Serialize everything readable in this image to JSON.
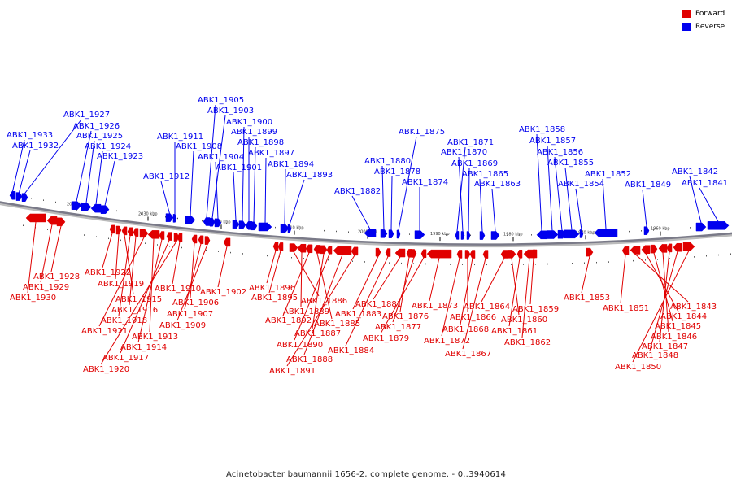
{
  "legend": {
    "forward_label": "Forward",
    "reverse_label": "Reverse",
    "forward_color": "#e00000",
    "reverse_color": "#0000ee"
  },
  "caption": "Acinetobacter baumannii 1656-2, complete genome. - 0..3940614",
  "scale_labels": [
    "2040 kbp",
    "2030 kbp",
    "2020 kbp",
    "2010 kbp",
    "2000 kbp",
    "1990 kbp",
    "1980 kbp",
    "1970 kbp",
    "1960 kbp"
  ],
  "reverse_genes": [
    "ABK1_1933",
    "ABK1_1932",
    "ABK1_1927",
    "ABK1_1926",
    "ABK1_1925",
    "ABK1_1924",
    "ABK1_1923",
    "ABK1_1912",
    "ABK1_1911",
    "ABK1_1908",
    "ABK1_1905",
    "ABK1_1903",
    "ABK1_1904",
    "ABK1_1901",
    "ABK1_1900",
    "ABK1_1899",
    "ABK1_1898",
    "ABK1_1897",
    "ABK1_1894",
    "ABK1_1893",
    "ABK1_1882",
    "ABK1_1880",
    "ABK1_1878",
    "ABK1_1875",
    "ABK1_1874",
    "ABK1_1871",
    "ABK1_1870",
    "ABK1_1869",
    "ABK1_1865",
    "ABK1_1863",
    "ABK1_1858",
    "ABK1_1857",
    "ABK1_1856",
    "ABK1_1855",
    "ABK1_1854",
    "ABK1_1852",
    "ABK1_1849",
    "ABK1_1842",
    "ABK1_1841"
  ],
  "forward_genes": [
    "ABK1_1928",
    "ABK1_1929",
    "ABK1_1930",
    "ABK1_1922",
    "ABK1_1919",
    "ABK1_1915",
    "ABK1_1918",
    "ABK1_1916",
    "ABK1_1921",
    "ABK1_1913",
    "ABK1_1914",
    "ABK1_1917",
    "ABK1_1920",
    "ABK1_1910",
    "ABK1_1906",
    "ABK1_1907",
    "ABK1_1909",
    "ABK1_1902",
    "ABK1_1896",
    "ABK1_1895",
    "ABK1_1886",
    "ABK1_1889",
    "ABK1_1892",
    "ABK1_1885",
    "ABK1_1887",
    "ABK1_1890",
    "ABK1_1888",
    "ABK1_1891",
    "ABK1_1883",
    "ABK1_1884",
    "ABK1_1881",
    "ABK1_1876",
    "ABK1_1877",
    "ABK1_1879",
    "ABK1_1873",
    "ABK1_1872",
    "ABK1_1866",
    "ABK1_1868",
    "ABK1_1867",
    "ABK1_1864",
    "ABK1_1860",
    "ABK1_1861",
    "ABK1_1862",
    "ABK1_1859",
    "ABK1_1853",
    "ABK1_1851",
    "ABK1_1843",
    "ABK1_1844",
    "ABK1_1845",
    "ABK1_1846",
    "ABK1_1847",
    "ABK1_1848",
    "ABK1_1850"
  ]
}
